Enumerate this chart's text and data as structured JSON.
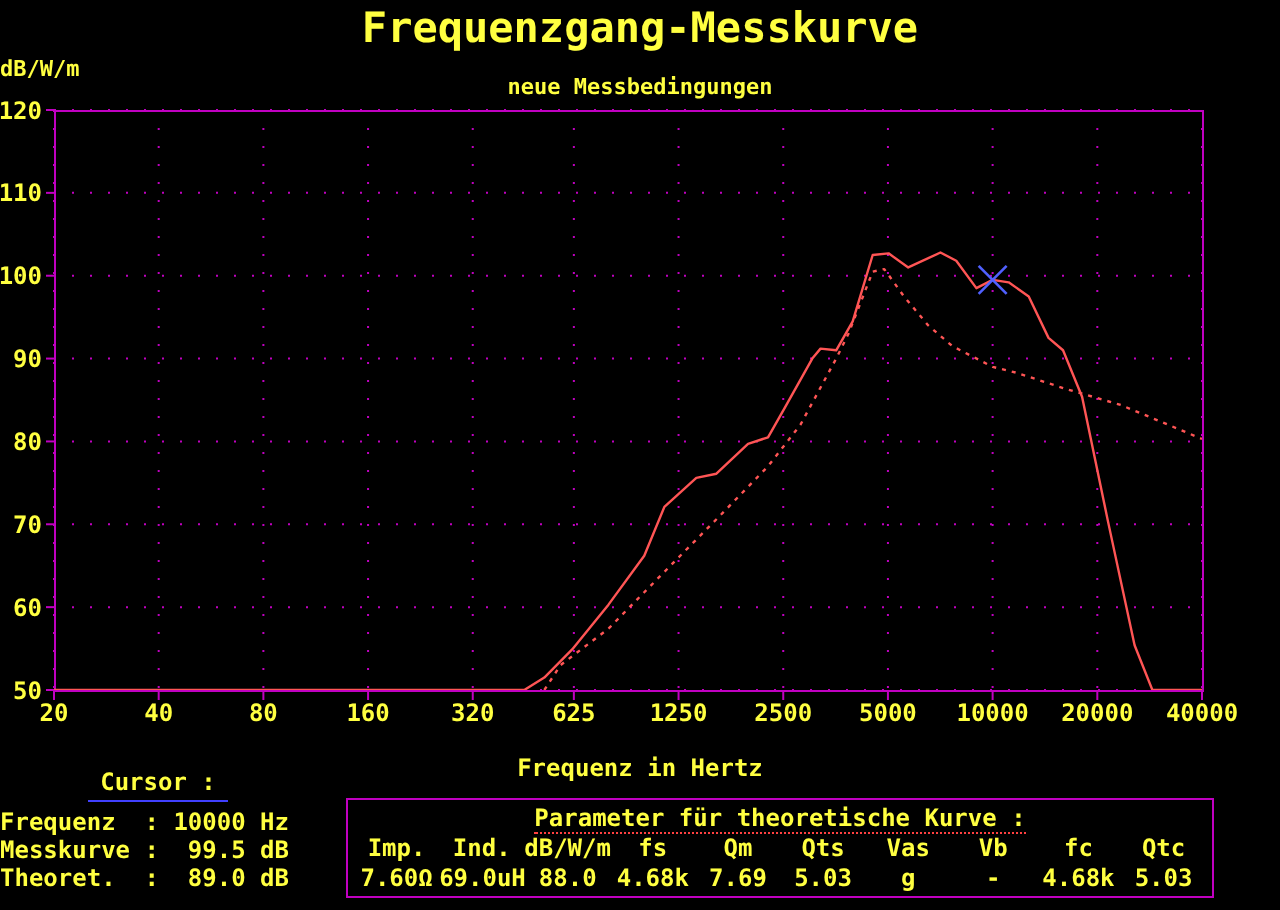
{
  "chart_data": {
    "type": "line",
    "title": "Frequenzgang-Messkurve",
    "subtitle": "neue Messbedingungen",
    "xlabel": "Frequenz in Hertz",
    "ylabel": "dB/W/m",
    "log": "x",
    "xlim": [
      20,
      40000
    ],
    "xticks": [
      20,
      40,
      80,
      160,
      320,
      625,
      1250,
      2500,
      5000,
      10000,
      20000,
      40000
    ],
    "ylim": [
      50,
      120
    ],
    "yticks": [
      50,
      60,
      70,
      80,
      90,
      100,
      110,
      120
    ],
    "grid": true,
    "marker": "none",
    "series": [
      {
        "color": "#ff5555",
        "line_style": "solid",
        "x": [
          20,
          450,
          514,
          618,
          786,
          996,
          1138,
          1406,
          1606,
          1980,
          2260,
          2520,
          3030,
          3200,
          3550,
          3960,
          4520,
          5020,
          5720,
          7080,
          7860,
          8980,
          10000,
          11120,
          12700,
          14480,
          15940,
          18080,
          21500,
          25600,
          28800,
          40000
        ],
        "values": [
          50,
          50,
          51.5,
          54.9,
          60.3,
          66.2,
          72.1,
          75.6,
          76.1,
          79.7,
          80.5,
          84,
          90,
          91.2,
          91,
          94.5,
          102.5,
          102.7,
          101,
          102.8,
          101.8,
          98.5,
          99.5,
          99.2,
          97.5,
          92.5,
          91,
          85.4,
          70.2,
          55.4,
          50,
          50
        ]
      },
      {
        "color": "#ff5555",
        "line_style": "dotted",
        "x": [
          514,
          572,
          786,
          996,
          1264,
          1650,
          2260,
          2800,
          3550,
          3850,
          4520,
          4880,
          5560,
          6530,
          7660,
          10000,
          11690,
          16060,
          23360,
          30400,
          40000
        ],
        "values": [
          50,
          53,
          57.4,
          61.8,
          66.2,
          71.1,
          77,
          82,
          90,
          93,
          100.5,
          100.8,
          97.5,
          94,
          91.5,
          89,
          88.3,
          86.4,
          84.4,
          82.4,
          80.3
        ]
      },
      {
        "type": "scatter",
        "color": "#5060ff",
        "marker": "cross",
        "x": [
          10000
        ],
        "values": [
          99.5
        ]
      }
    ],
    "annotations": [
      "Cursor :",
      "Frequenz  : 10000 Hz",
      "Messkurve :  99.5 dB",
      "Theoret.  :  89.0 dB",
      "Parameter für theoretische Kurve :",
      "Imp.",
      "Ind.",
      "dB/W/m",
      "fs",
      "Qm",
      "Qts",
      "Vas",
      "Vb",
      "fc",
      "Qtc",
      "7.60Ω",
      "69.0uH",
      "88.0",
      "4.68k",
      "7.69",
      "5.03",
      "g",
      "-",
      "4.68k",
      "5.03"
    ]
  }
}
